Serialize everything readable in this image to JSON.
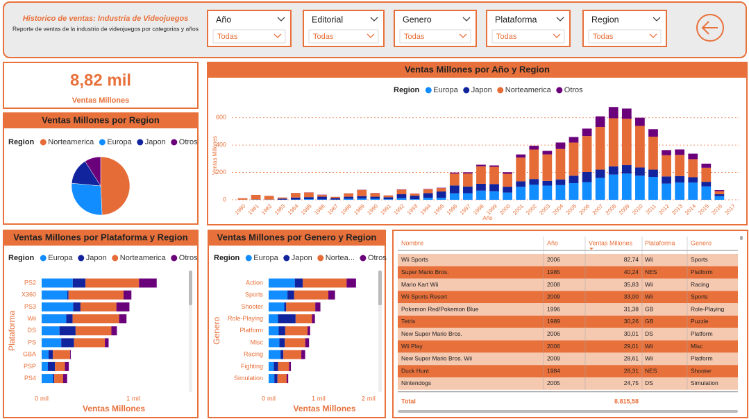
{
  "header": {
    "title": "Historico de ventas: Industria de Videojuegos",
    "subtitle": "Reporte de ventas de la industria de videojuegos por categorias y años"
  },
  "filters": [
    {
      "label": "Año",
      "value": "Todas"
    },
    {
      "label": "Editorial",
      "value": "Todas"
    },
    {
      "label": "Genero",
      "value": "Todas"
    },
    {
      "label": "Plataforma",
      "value": "Todas"
    },
    {
      "label": "Region",
      "value": "Todas"
    }
  ],
  "kpi": {
    "value": "8,82 mil",
    "label": "Ventas Millones"
  },
  "chart_data": [
    {
      "type": "bar",
      "orientation": "vertical",
      "stacked": true,
      "title": "Ventas Millones por Año y Region",
      "legend_title": "Region",
      "x_label": "Año",
      "y_label": "Ventas Millones",
      "categories": [
        1980,
        1981,
        1982,
        1983,
        1984,
        1985,
        1986,
        1987,
        1988,
        1989,
        1990,
        1991,
        1992,
        1993,
        1994,
        1995,
        1996,
        1997,
        1998,
        1999,
        2000,
        2001,
        2002,
        2003,
        2004,
        2005,
        2006,
        2007,
        2008,
        2009,
        2010,
        2011,
        2012,
        2013,
        2014,
        2015,
        2016,
        2017
      ],
      "series": [
        {
          "name": "Europa",
          "color": "#118DFF",
          "values": [
            0.67,
            1.96,
            1.65,
            0.8,
            2.1,
            4.74,
            2.84,
            1.41,
            6.59,
            8.44,
            7.63,
            3.95,
            11.71,
            4.65,
            14.88,
            14.9,
            47.26,
            48.32,
            66.9,
            62.67,
            52.75,
            94.89,
            109.74,
            103.81,
            107.27,
            121.56,
            129.24,
            160.18,
            184.4,
            191.59,
            176.57,
            167.44,
            118.78,
            125.8,
            125.65,
            97.71,
            26.76,
            0
          ]
        },
        {
          "name": "Japon",
          "color": "#12239E",
          "values": [
            0,
            0,
            0,
            8.1,
            14.27,
            14.56,
            19.81,
            11.63,
            15.76,
            18.36,
            14.88,
            14.78,
            28.91,
            25.33,
            33.99,
            45.75,
            57.44,
            48.87,
            50.04,
            52.34,
            42.77,
            39.86,
            41.76,
            34.2,
            41.65,
            54.28,
            73.73,
            60.29,
            60.26,
            61.89,
            59.49,
            53.04,
            51.8,
            47.59,
            39.46,
            33.72,
            13.7,
            0.05
          ]
        },
        {
          "name": "Norteamerica",
          "color": "#E66C37",
          "values": [
            10.59,
            33.4,
            26.92,
            7.76,
            33.28,
            33.73,
            12.5,
            8.46,
            23.87,
            45.15,
            25.46,
            12.76,
            33.87,
            15.12,
            28.15,
            24.82,
            86.76,
            94.75,
            128.36,
            126.06,
            94.49,
            173.98,
            216.19,
            193.59,
            222.59,
            242.61,
            263.12,
            312.05,
            351.44,
            338.85,
            304.24,
            241.21,
            154.96,
            154.77,
            131.97,
            102.82,
            22.66,
            0
          ]
        },
        {
          "name": "Otros",
          "color": "#6B007B",
          "values": [
            0.12,
            0.32,
            0.31,
            0.14,
            0.7,
            0.92,
            1.93,
            0.2,
            0.99,
            1.5,
            1.4,
            0.74,
            1.65,
            0.89,
            2.2,
            2.64,
            7.69,
            9.13,
            11.03,
            10.05,
            11.62,
            22.76,
            27.28,
            26.01,
            47.29,
            40.58,
            54.43,
            77.58,
            82.39,
            74.77,
            59.9,
            54.39,
            37.82,
            39.82,
            40.02,
            30.01,
            7.75,
            0
          ]
        }
      ],
      "ylim": [
        0,
        700
      ],
      "yticks": [
        0,
        200,
        400,
        600
      ],
      "grid": true
    },
    {
      "type": "pie",
      "title": "Ventas Millones por Region",
      "legend_title": "Region",
      "categories": [
        "Norteamerica",
        "Europa",
        "Japon",
        "Otros"
      ],
      "values": [
        4330,
        2400,
        1280,
        790
      ],
      "colors": [
        "#E66C37",
        "#118DFF",
        "#12239E",
        "#6B007B"
      ]
    },
    {
      "type": "bar",
      "orientation": "horizontal",
      "stacked": true,
      "title": "Ventas Millones por Plataforma y Region",
      "legend_title": "Region",
      "x_label": "Ventas Millones",
      "y_label": "Plataforma",
      "categories": [
        "PS2",
        "X360",
        "PS3",
        "Wii",
        "DS",
        "PS",
        "GBA",
        "PSP",
        "PS4"
      ],
      "series": [
        {
          "name": "Europa",
          "color": "#118DFF",
          "values": [
            339.3,
            280.6,
            343.7,
            268.4,
            194.7,
            213.6,
            75.3,
            68.3,
            123.7
          ]
        },
        {
          "name": "Japon",
          "color": "#12239E",
          "values": [
            139.2,
            12.4,
            80.0,
            69.4,
            175.6,
            139.8,
            47.3,
            76.8,
            14.3
          ]
        },
        {
          "name": "Norteamerica",
          "color": "#E66C37",
          "values": [
            583.8,
            601.0,
            392.3,
            507.7,
            390.7,
            336.5,
            187.5,
            109.0,
            96.8
          ]
        },
        {
          "name": "Otros",
          "color": "#6B007B",
          "values": [
            193.4,
            85.5,
            141.9,
            80.6,
            60.5,
            40.9,
            7.7,
            42.2,
            43.4
          ]
        }
      ],
      "xlim": [
        0,
        1500
      ],
      "xticks": [
        {
          "value": 0,
          "label": "0 mil"
        },
        {
          "value": 1000,
          "label": "1 mil"
        }
      ]
    },
    {
      "type": "bar",
      "orientation": "horizontal",
      "stacked": true,
      "title": "Ventas Millones por Genero y Region",
      "legend_title": "Region",
      "x_label": "Ventas Millones",
      "y_label": "Genero",
      "categories": [
        "Action",
        "Sports",
        "Shooter",
        "Role-Playing",
        "Platform",
        "Misc",
        "Racing",
        "Fighting",
        "Simulation"
      ],
      "series": [
        {
          "name": "Europa",
          "color": "#118DFF",
          "values": [
            525.0,
            376.9,
            313.3,
            188.1,
            201.6,
            216.0,
            238.4,
            101.3,
            113.4
          ]
        },
        {
          "name": "Japon",
          "color": "#12239E",
          "values": [
            160.0,
            135.4,
            38.3,
            352.3,
            130.8,
            107.8,
            56.7,
            87.4,
            63.7
          ]
        },
        {
          "name": "Nortea...",
          "color": "#E66C37",
          "values": [
            877.8,
            683.4,
            582.6,
            327.3,
            447.1,
            410.2,
            359.4,
            220.4,
            183.3
          ]
        },
        {
          "name": "Otros",
          "color": "#6B007B",
          "values": [
            187.4,
            134.0,
            102.7,
            59.6,
            51.6,
            75.3,
            77.3,
            36.7,
            31.5
          ]
        }
      ],
      "xlim": [
        0,
        2100
      ],
      "xticks": [
        {
          "value": 0,
          "label": "0 mil"
        },
        {
          "value": 1000,
          "label": "1 mil"
        },
        {
          "value": 2000,
          "label": "2 mil"
        }
      ]
    }
  ],
  "table": {
    "columns": [
      "Nombre",
      "Año",
      "Ventas Millones",
      "Plataforma",
      "Genero"
    ],
    "rows": [
      [
        "Wii Sports",
        "2006",
        "82,74",
        "Wii",
        "Sports"
      ],
      [
        "Super Mario Bros.",
        "1985",
        "40,24",
        "NES",
        "Platform"
      ],
      [
        "Mario Kart Wii",
        "2008",
        "35,83",
        "Wii",
        "Racing"
      ],
      [
        "Wii Sports Resort",
        "2009",
        "33,00",
        "Wii",
        "Sports"
      ],
      [
        "Pokemon Red/Pokemon Blue",
        "1996",
        "31,38",
        "GB",
        "Role-Playing"
      ],
      [
        "Tetris",
        "1989",
        "30,26",
        "GB",
        "Puzzle"
      ],
      [
        "New Super Mario Bros.",
        "2006",
        "30,01",
        "DS",
        "Platform"
      ],
      [
        "Wii Play",
        "2006",
        "29,01",
        "Wii",
        "Misc"
      ],
      [
        "New Super Mario Bros. Wii",
        "2009",
        "28,61",
        "Wii",
        "Platform"
      ],
      [
        "Duck Hunt",
        "1984",
        "28,31",
        "NES",
        "Shooter"
      ],
      [
        "Nintendogs",
        "2005",
        "24,75",
        "DS",
        "Simulation"
      ]
    ],
    "total_label": "Total",
    "total_value": "8.815,58"
  }
}
